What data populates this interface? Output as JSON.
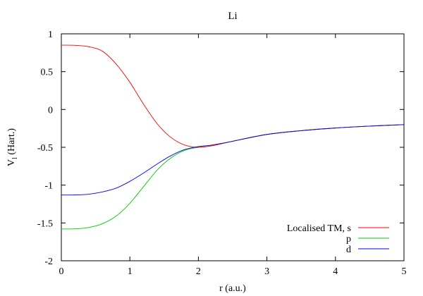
{
  "chart_data": {
    "type": "line",
    "title": "Li",
    "xlabel": "r (a.u.)",
    "ylabel_main": "V",
    "ylabel_sub": "l",
    "ylabel_rest": " (Hart.)",
    "xlim": [
      0,
      5
    ],
    "ylim": [
      -2,
      1
    ],
    "x_ticks": [
      0,
      1,
      2,
      3,
      4,
      5
    ],
    "x_tick_labels": [
      "0",
      "1",
      "2",
      "3",
      "4",
      "5"
    ],
    "y_ticks": [
      1,
      0.5,
      0,
      -0.5,
      -1,
      -1.5,
      -2
    ],
    "y_tick_labels": [
      "1",
      "0.5",
      "0",
      "-0.5",
      "-1",
      "-1.5",
      "-2"
    ],
    "grid": false,
    "legend_position": "bottom-right",
    "series": [
      {
        "name": "Localised TM, s",
        "color": "#ff0000",
        "x": [
          0,
          0.2,
          0.4,
          0.6,
          0.8,
          1.0,
          1.2,
          1.4,
          1.6,
          1.8,
          2.0,
          2.2,
          2.5,
          3.0,
          3.5,
          4.0,
          4.5,
          5.0
        ],
        "y": [
          0.85,
          0.848,
          0.83,
          0.77,
          0.6,
          0.36,
          0.07,
          -0.19,
          -0.37,
          -0.47,
          -0.5,
          -0.48,
          -0.42,
          -0.33,
          -0.28,
          -0.245,
          -0.22,
          -0.2
        ]
      },
      {
        "name": "p",
        "color": "#00cc00",
        "x": [
          0,
          0.2,
          0.4,
          0.6,
          0.8,
          1.0,
          1.2,
          1.4,
          1.6,
          1.8,
          2.0,
          2.2,
          2.5,
          3.0,
          3.5,
          4.0,
          4.5,
          5.0
        ],
        "y": [
          -1.58,
          -1.578,
          -1.56,
          -1.51,
          -1.41,
          -1.24,
          -1.02,
          -0.8,
          -0.64,
          -0.54,
          -0.5,
          -0.48,
          -0.42,
          -0.33,
          -0.28,
          -0.245,
          -0.22,
          -0.2
        ]
      },
      {
        "name": "d",
        "color": "#0000ff",
        "x": [
          0,
          0.2,
          0.4,
          0.6,
          0.8,
          1.0,
          1.2,
          1.4,
          1.6,
          1.8,
          2.0,
          2.2,
          2.5,
          3.0,
          3.5,
          4.0,
          4.5,
          5.0
        ],
        "y": [
          -1.13,
          -1.13,
          -1.12,
          -1.09,
          -1.04,
          -0.95,
          -0.84,
          -0.72,
          -0.61,
          -0.53,
          -0.49,
          -0.47,
          -0.42,
          -0.33,
          -0.28,
          -0.245,
          -0.22,
          -0.2
        ]
      }
    ]
  }
}
